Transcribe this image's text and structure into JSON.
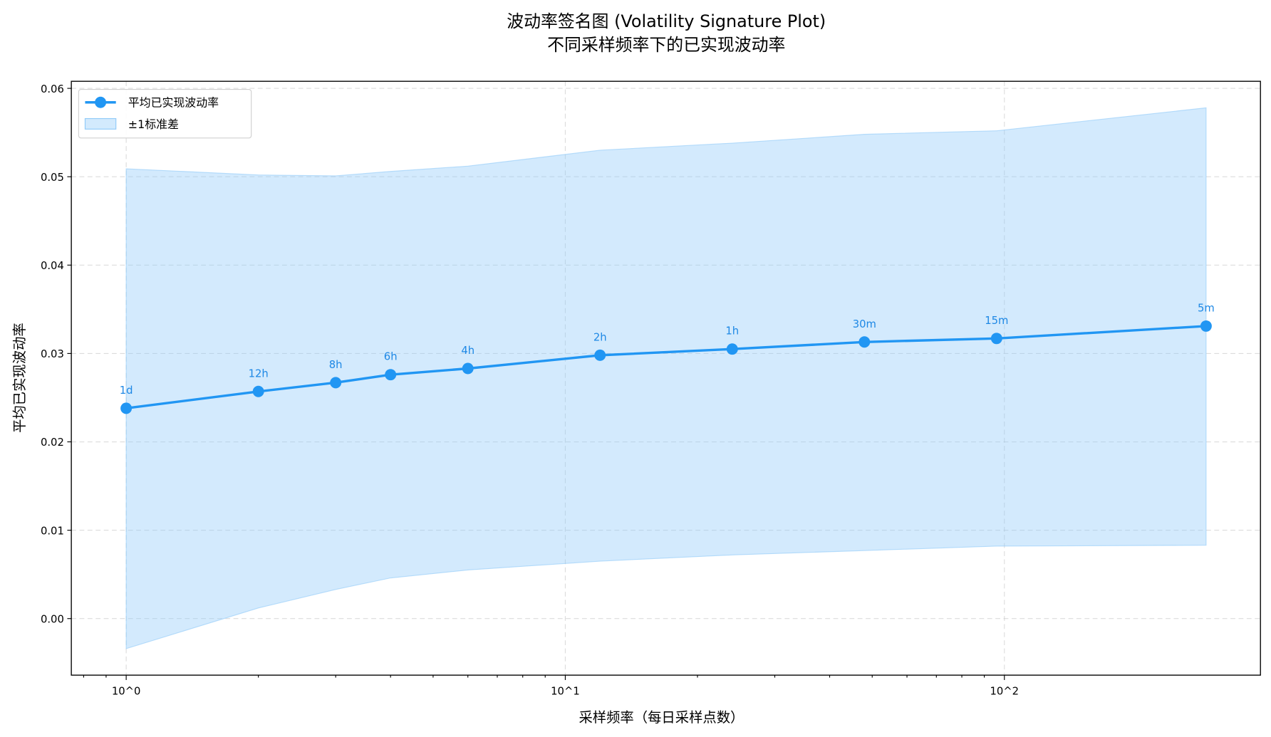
{
  "chart_data": {
    "type": "line",
    "title": "波动率签名图 (Volatility Signature Plot)",
    "subtitle": "不同采样频率下的已实现波动率",
    "xlabel": "采样频率（每日采样点数）",
    "ylabel": "平均已实现波动率",
    "xscale": "log",
    "xlim": [
      0.75,
      383
    ],
    "ylim": [
      -0.0064,
      0.0608
    ],
    "grid": true,
    "legend_position": "top-left",
    "x_ticks": [
      1,
      10,
      100
    ],
    "x_tick_labels": [
      "10^0",
      "10^1",
      "10^2"
    ],
    "y_ticks": [
      0.0,
      0.01,
      0.02,
      0.03,
      0.04,
      0.05,
      0.06
    ],
    "y_tick_labels": [
      "0.00",
      "0.01",
      "0.02",
      "0.03",
      "0.04",
      "0.05",
      "0.06"
    ],
    "x": [
      1,
      2,
      3,
      4,
      6,
      12,
      24,
      48,
      96,
      288
    ],
    "point_labels": [
      "1d",
      "12h",
      "8h",
      "6h",
      "4h",
      "2h",
      "1h",
      "30m",
      "15m",
      "5m"
    ],
    "series": [
      {
        "name": "平均已实现波动率",
        "color": "#2196F3",
        "values": [
          0.0238,
          0.0257,
          0.0267,
          0.0276,
          0.0283,
          0.0298,
          0.0305,
          0.0313,
          0.0317,
          0.0331
        ]
      }
    ],
    "band": {
      "name": "±1标准差",
      "color": "#90CAF9",
      "upper": [
        0.0509,
        0.0502,
        0.0501,
        0.0506,
        0.0512,
        0.053,
        0.0538,
        0.0548,
        0.0552,
        0.0578
      ],
      "lower": [
        -0.0034,
        0.0012,
        0.0033,
        0.0046,
        0.0055,
        0.0065,
        0.0072,
        0.0077,
        0.0082,
        0.0083
      ]
    }
  }
}
